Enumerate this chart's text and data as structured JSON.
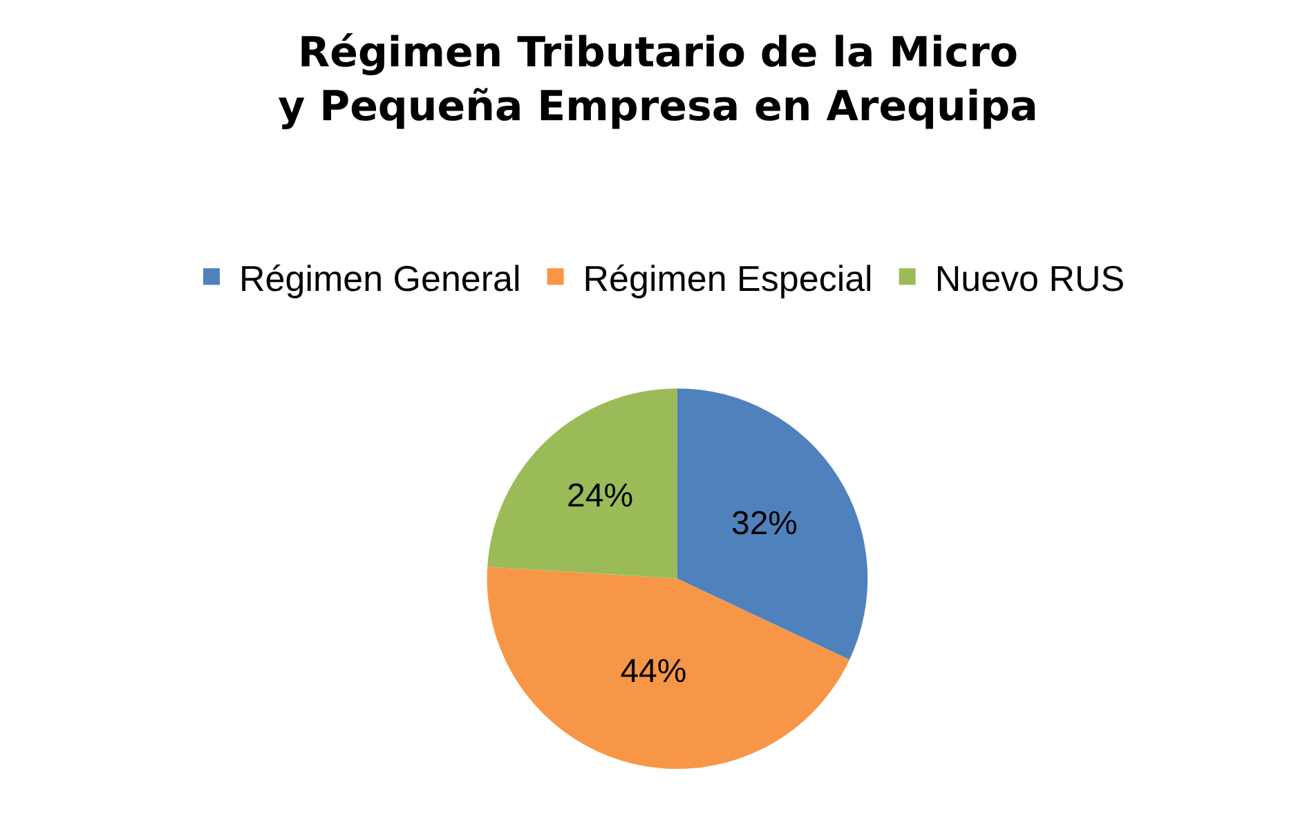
{
  "chart_data": {
    "type": "pie",
    "title": "Régimen Tributario de la Micro y Pequeña Empresa en Arequipa",
    "categories": [
      "Régimen General",
      "Régimen Especial",
      "Nuevo RUS"
    ],
    "values": [
      32,
      44,
      24
    ],
    "colors": [
      "#4f81bd",
      "#f79646",
      "#9bbb59"
    ],
    "value_labels": [
      "32%",
      "44%",
      "24%"
    ],
    "legend": "top"
  }
}
